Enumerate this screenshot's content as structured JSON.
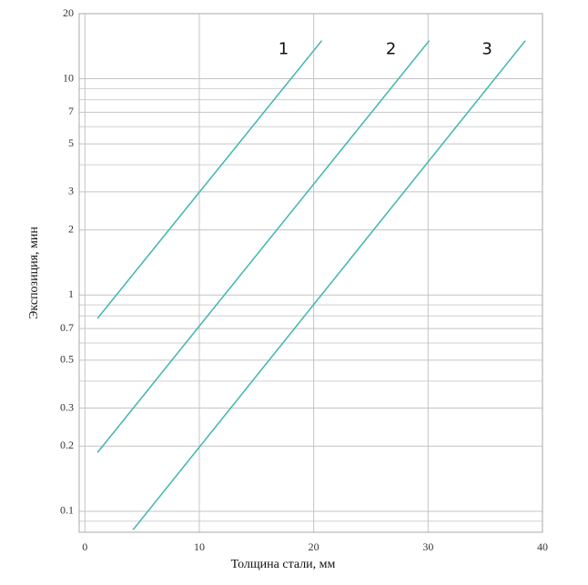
{
  "chart_data": {
    "type": "line",
    "x_label": "Толщина стали, мм",
    "y_label": "Экспозиция, мин",
    "xlim": [
      -0.5,
      40
    ],
    "xticks": [
      0,
      10,
      20,
      30,
      40
    ],
    "ylim": [
      0.08,
      20
    ],
    "yticks": [
      0.1,
      0.2,
      0.3,
      0.5,
      0.7,
      1,
      2,
      3,
      5,
      7,
      10,
      20
    ],
    "y_minor_ticks": [
      0.09,
      0.4,
      0.6,
      0.8,
      0.9,
      4,
      6,
      8,
      9
    ],
    "y_scale": "log",
    "grid": true,
    "series": [
      {
        "name": "1",
        "color": "#3fb5b0",
        "x": [
          1.1,
          20.7
        ],
        "values": [
          0.78,
          15
        ]
      },
      {
        "name": "2",
        "color": "#3fb5b0",
        "x": [
          1.1,
          30.1
        ],
        "values": [
          0.187,
          15
        ]
      },
      {
        "name": "3",
        "color": "#3fb5b0",
        "x": [
          4.2,
          38.5
        ],
        "values": [
          0.082,
          15
        ]
      }
    ]
  }
}
